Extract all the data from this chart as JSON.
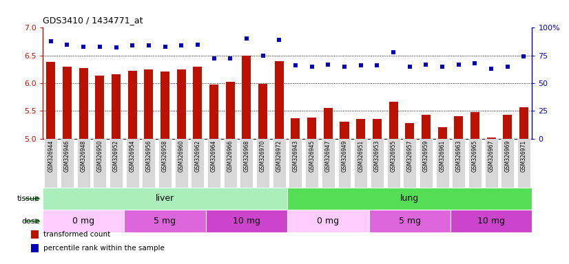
{
  "title": "GDS3410 / 1434771_at",
  "samples": [
    "GSM326944",
    "GSM326946",
    "GSM326948",
    "GSM326950",
    "GSM326952",
    "GSM326954",
    "GSM326956",
    "GSM326958",
    "GSM326960",
    "GSM326962",
    "GSM326964",
    "GSM326966",
    "GSM326968",
    "GSM326970",
    "GSM326972",
    "GSM326943",
    "GSM326945",
    "GSM326947",
    "GSM326949",
    "GSM326951",
    "GSM326953",
    "GSM326955",
    "GSM326957",
    "GSM326959",
    "GSM326961",
    "GSM326963",
    "GSM326965",
    "GSM326967",
    "GSM326969",
    "GSM326971"
  ],
  "bar_values": [
    6.39,
    6.3,
    6.27,
    6.13,
    6.16,
    6.22,
    6.25,
    6.21,
    6.25,
    6.3,
    5.97,
    6.03,
    6.5,
    5.99,
    6.4,
    5.37,
    5.38,
    5.55,
    5.3,
    5.36,
    5.36,
    5.67,
    5.28,
    5.43,
    5.21,
    5.41,
    5.48,
    5.02,
    5.43,
    5.56
  ],
  "percentile_values": [
    88,
    85,
    83,
    83,
    82,
    84,
    84,
    83,
    84,
    85,
    72,
    72,
    90,
    75,
    89,
    66,
    65,
    67,
    65,
    66,
    66,
    78,
    65,
    67,
    65,
    67,
    68,
    63,
    65,
    74
  ],
  "bar_color": "#bb1100",
  "dot_color": "#0000bb",
  "ylim_left": [
    5.0,
    7.0
  ],
  "ylim_right": [
    0,
    100
  ],
  "yticks_left": [
    5.0,
    5.5,
    6.0,
    6.5,
    7.0
  ],
  "yticks_right": [
    0,
    25,
    50,
    75,
    100
  ],
  "grid_values": [
    5.5,
    6.0,
    6.5
  ],
  "tissue_groups": [
    {
      "label": "liver",
      "start": 0,
      "end": 15,
      "color": "#aaeebb"
    },
    {
      "label": "lung",
      "start": 15,
      "end": 30,
      "color": "#55dd55"
    }
  ],
  "dose_groups": [
    {
      "label": "0 mg",
      "start": 0,
      "end": 5,
      "color": "#ffccff"
    },
    {
      "label": "5 mg",
      "start": 5,
      "end": 10,
      "color": "#dd66dd"
    },
    {
      "label": "10 mg",
      "start": 10,
      "end": 15,
      "color": "#cc44cc"
    },
    {
      "label": "0 mg",
      "start": 15,
      "end": 20,
      "color": "#ffccff"
    },
    {
      "label": "5 mg",
      "start": 20,
      "end": 25,
      "color": "#dd66dd"
    },
    {
      "label": "10 mg",
      "start": 25,
      "end": 30,
      "color": "#cc44cc"
    }
  ],
  "legend_bar_label": "transformed count",
  "legend_dot_label": "percentile rank within the sample",
  "tissue_label": "tissue",
  "dose_label": "dose",
  "chart_bg": "#ffffff",
  "xtick_bg": "#d8d8d8",
  "bar_width": 0.55,
  "arrow_color": "#44aa44"
}
